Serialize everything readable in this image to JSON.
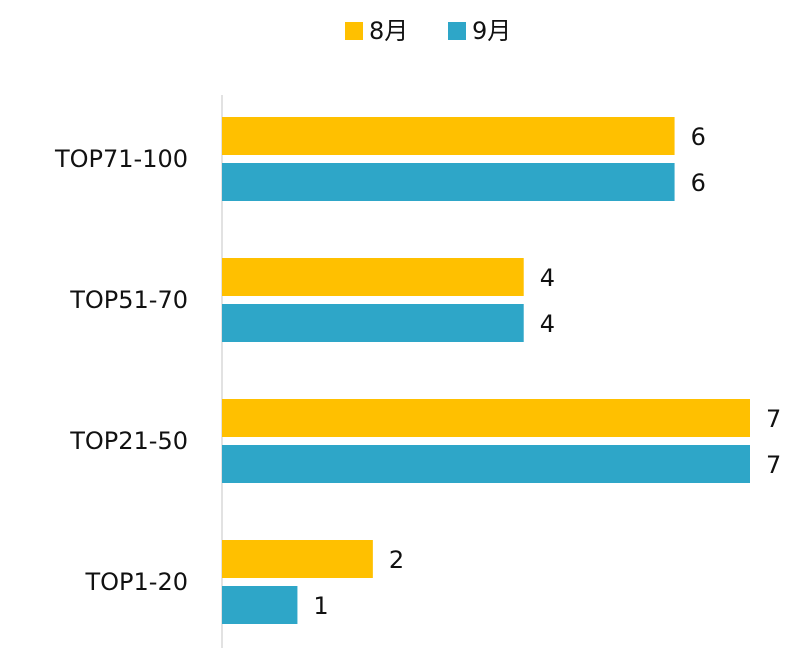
{
  "chart_data": {
    "type": "bar",
    "orientation": "horizontal",
    "categories": [
      "TOP71-100",
      "TOP51-70",
      "TOP21-50",
      "TOP1-20"
    ],
    "series": [
      {
        "name": "8月",
        "color": "#ffc000",
        "values": [
          6,
          4,
          7,
          2
        ]
      },
      {
        "name": "9月",
        "color": "#2ea6c8",
        "values": [
          6,
          4,
          7,
          1
        ]
      }
    ],
    "xlim": [
      0,
      7
    ],
    "legend": "top"
  }
}
